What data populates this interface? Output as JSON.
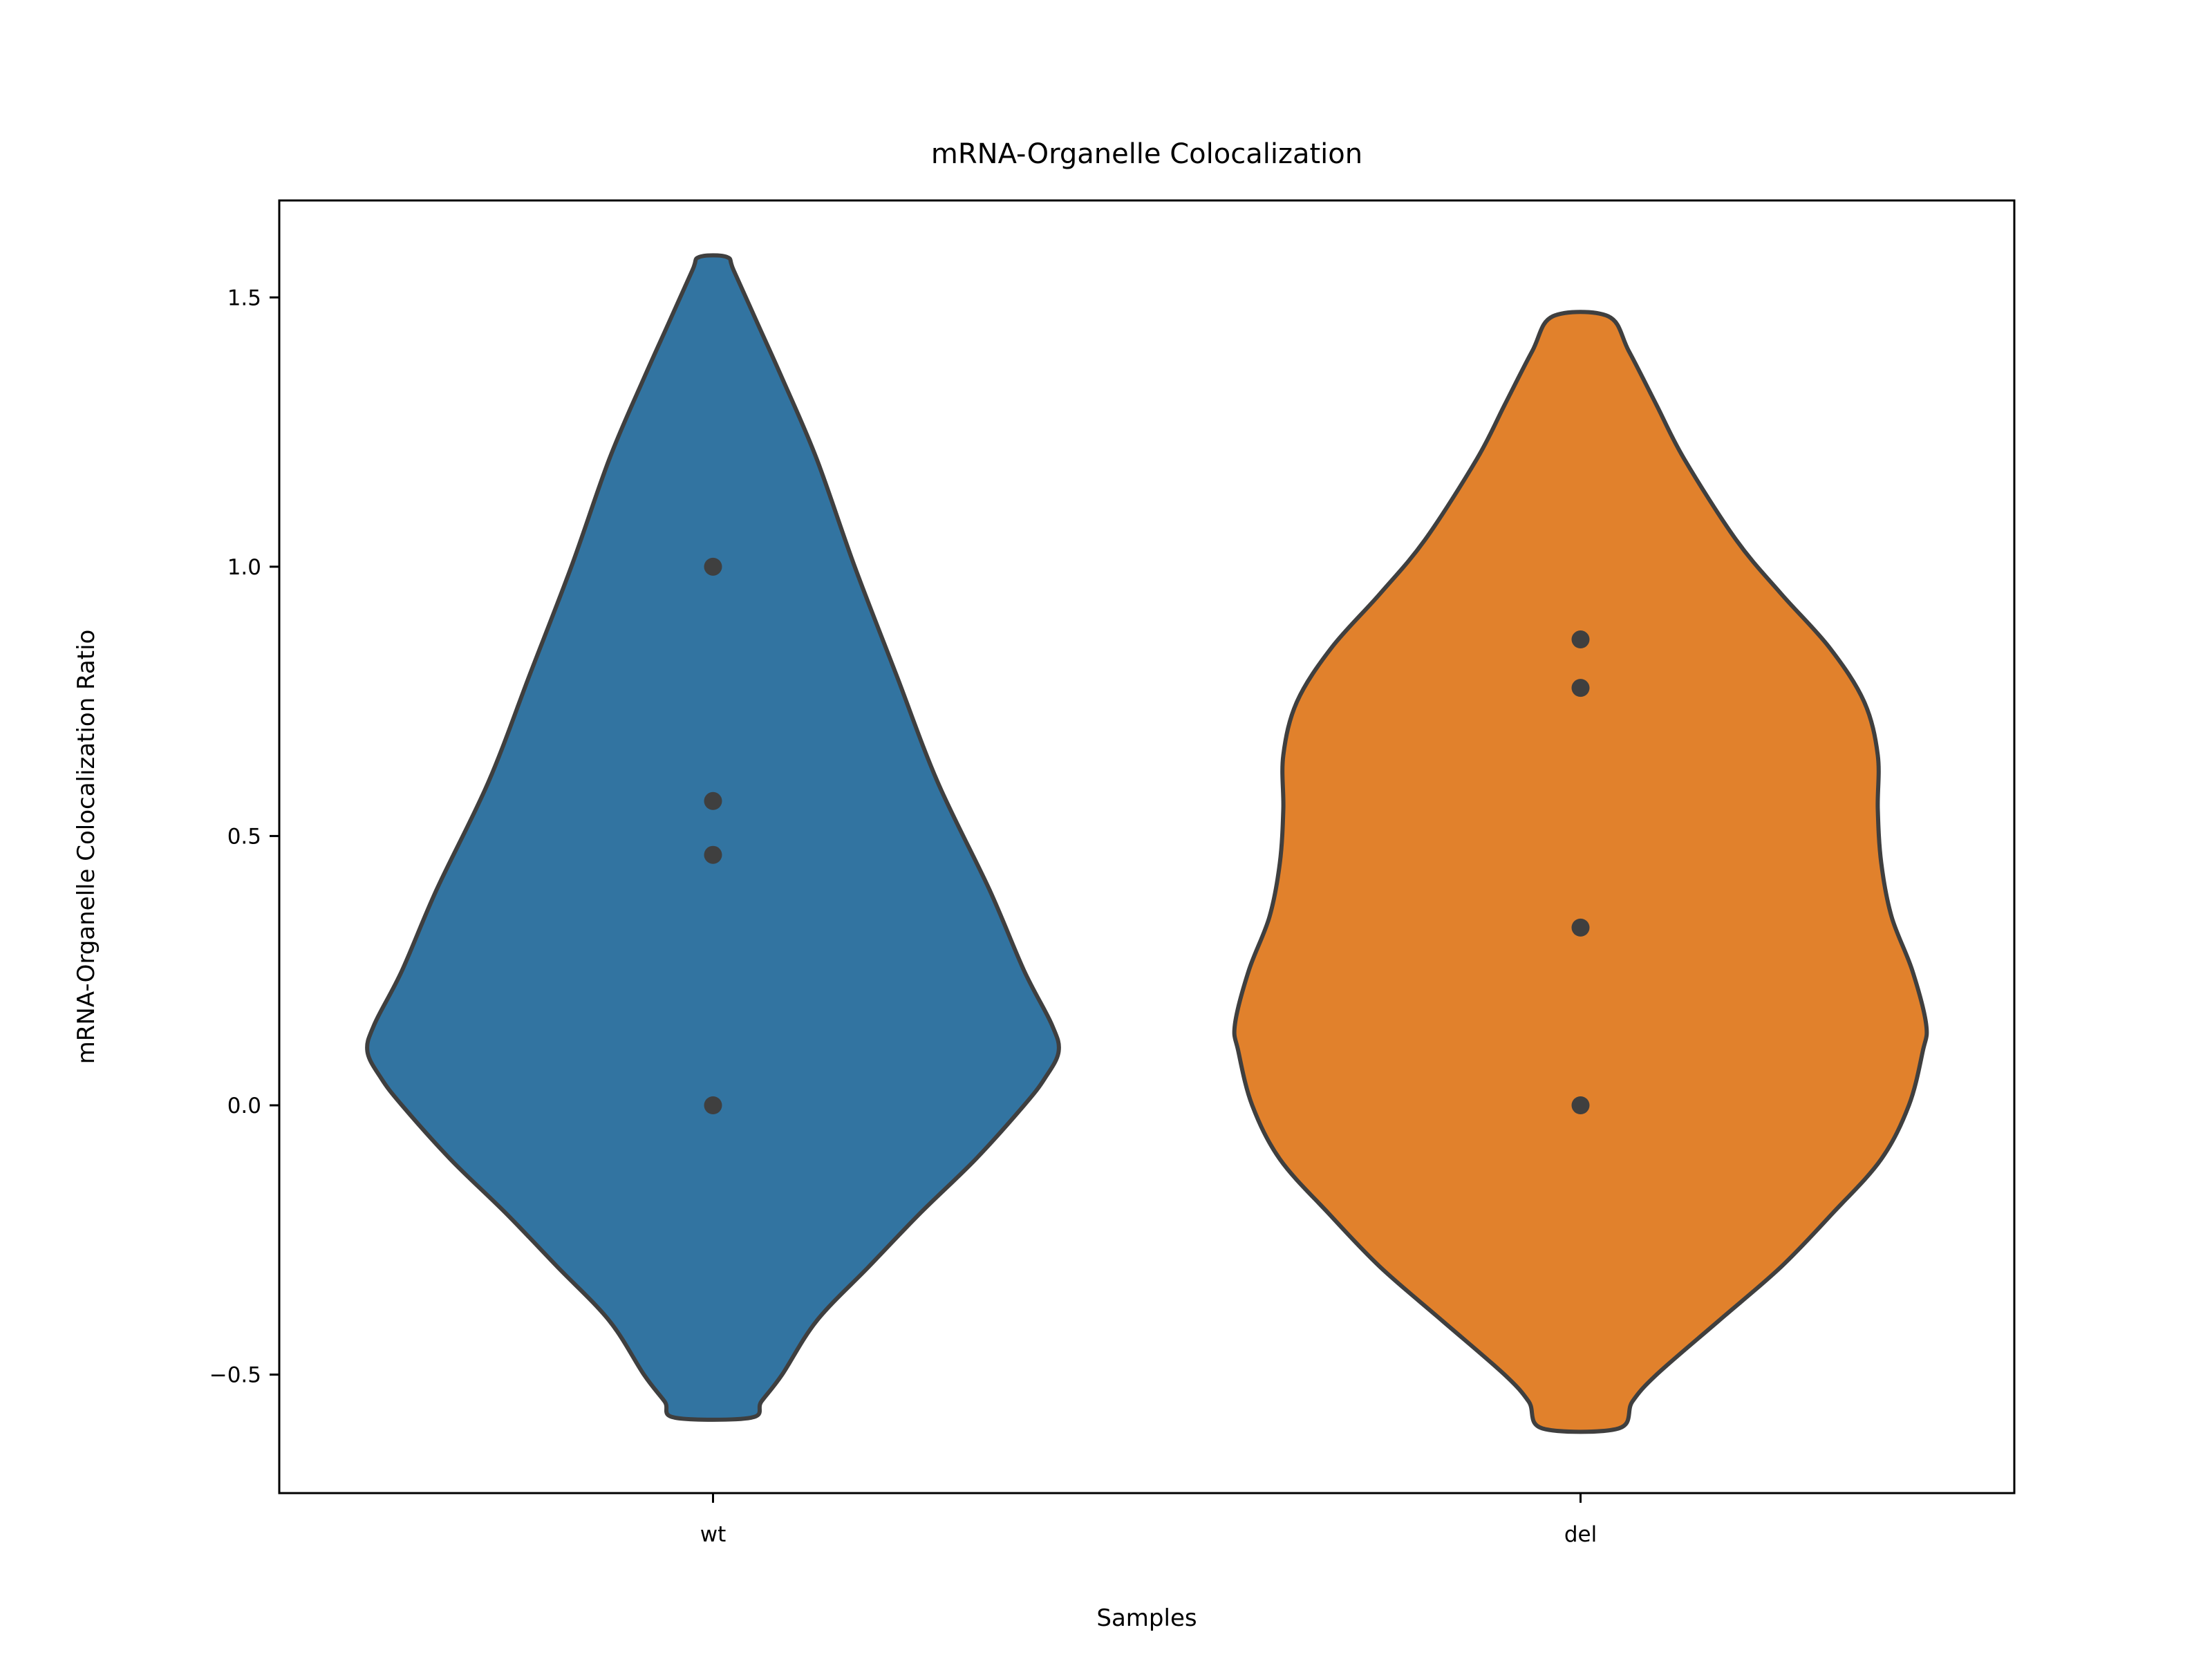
{
  "chart_data": {
    "type": "violin",
    "title": "mRNA-Organelle Colocalization",
    "xlabel": "Samples",
    "ylabel": "mRNA-Organelle Colocalization Ratio",
    "ylim": [
      -0.72,
      1.68
    ],
    "yticks": [
      -0.5,
      0.0,
      0.5,
      1.0,
      1.5
    ],
    "ytick_labels": [
      "−0.5",
      "0.0",
      "0.5",
      "1.0",
      "1.5"
    ],
    "categories": [
      "wt",
      "del"
    ],
    "grid": false,
    "series": [
      {
        "category": "wt",
        "color": "#3274a1",
        "points": [
          1.0,
          0.565,
          0.465,
          0.0
        ],
        "violin_range": [
          -0.58,
          1.575
        ],
        "density_profile": [
          [
            -0.58,
            0.11
          ],
          [
            -0.55,
            0.14
          ],
          [
            -0.5,
            0.2
          ],
          [
            -0.4,
            0.3
          ],
          [
            -0.3,
            0.45
          ],
          [
            -0.2,
            0.6
          ],
          [
            -0.1,
            0.76
          ],
          [
            0.0,
            0.9
          ],
          [
            0.05,
            0.96
          ],
          [
            0.1,
            1.0
          ],
          [
            0.15,
            0.98
          ],
          [
            0.25,
            0.9
          ],
          [
            0.4,
            0.8
          ],
          [
            0.6,
            0.65
          ],
          [
            0.8,
            0.53
          ],
          [
            1.0,
            0.41
          ],
          [
            1.2,
            0.3
          ],
          [
            1.35,
            0.2
          ],
          [
            1.45,
            0.13
          ],
          [
            1.55,
            0.06
          ],
          [
            1.575,
            0.04
          ]
        ]
      },
      {
        "category": "del",
        "color": "#e1812c",
        "points": [
          0.865,
          0.775,
          0.33,
          0.0
        ],
        "violin_range": [
          -0.6,
          1.465
        ],
        "density_profile": [
          [
            -0.6,
            0.11
          ],
          [
            -0.55,
            0.15
          ],
          [
            -0.5,
            0.22
          ],
          [
            -0.4,
            0.4
          ],
          [
            -0.3,
            0.58
          ],
          [
            -0.2,
            0.73
          ],
          [
            -0.1,
            0.87
          ],
          [
            0.0,
            0.95
          ],
          [
            0.1,
            0.99
          ],
          [
            0.15,
            1.0
          ],
          [
            0.25,
            0.96
          ],
          [
            0.35,
            0.9
          ],
          [
            0.45,
            0.87
          ],
          [
            0.55,
            0.86
          ],
          [
            0.65,
            0.86
          ],
          [
            0.75,
            0.82
          ],
          [
            0.85,
            0.72
          ],
          [
            0.95,
            0.58
          ],
          [
            1.05,
            0.45
          ],
          [
            1.2,
            0.3
          ],
          [
            1.3,
            0.22
          ],
          [
            1.4,
            0.14
          ],
          [
            1.465,
            0.08
          ]
        ]
      }
    ]
  }
}
